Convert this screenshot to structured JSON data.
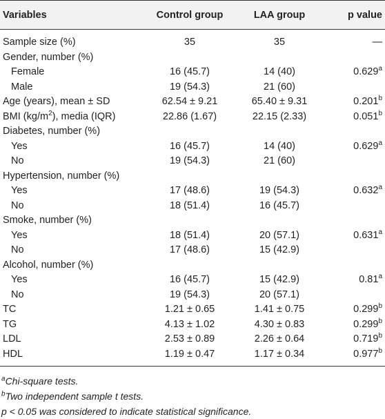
{
  "table": {
    "header": [
      "Variables",
      "Control group",
      "LAA group",
      "p value"
    ],
    "rows": [
      {
        "cells": [
          "Sample size (%)",
          "35",
          "35",
          "—"
        ]
      },
      {
        "cells": [
          "Gender, number (%)"
        ]
      },
      {
        "sub": true,
        "cells": [
          "Female",
          "16 (45.7)",
          "14 (40)",
          {
            "text": "0.629",
            "sup": "a"
          }
        ]
      },
      {
        "sub": true,
        "cells": [
          "Male",
          "19 (54.3)",
          "21 (60)"
        ]
      },
      {
        "cells": [
          "Age (years), mean ± SD",
          "62.54 ± 9.21",
          "65.40 ± 9.31",
          {
            "text": "0.201",
            "sup": "b"
          }
        ]
      },
      {
        "cells": [
          {
            "text": "BMI (kg/m",
            "sup": "2",
            "after": "), media (IQR)"
          },
          "22.86 (1.67)",
          "22.15 (2.33)",
          {
            "text": "0.051",
            "sup": "b"
          }
        ]
      },
      {
        "cells": [
          "Diabetes, number (%)"
        ]
      },
      {
        "sub": true,
        "cells": [
          "Yes",
          "16 (45.7)",
          "14 (40)",
          {
            "text": "0.629",
            "sup": "a"
          }
        ]
      },
      {
        "sub": true,
        "cells": [
          "No",
          "19 (54.3)",
          "21 (60)"
        ]
      },
      {
        "cells": [
          "Hypertension, number (%)"
        ]
      },
      {
        "sub": true,
        "cells": [
          "Yes",
          "17 (48.6)",
          "19 (54.3)",
          {
            "text": "0.632",
            "sup": "a"
          }
        ]
      },
      {
        "sub": true,
        "cells": [
          "No",
          "18 (51.4)",
          "16 (45.7)"
        ]
      },
      {
        "cells": [
          "Smoke, number (%)"
        ]
      },
      {
        "sub": true,
        "cells": [
          "Yes",
          "18 (51.4)",
          "20 (57.1)",
          {
            "text": "0.631",
            "sup": "a"
          }
        ]
      },
      {
        "sub": true,
        "cells": [
          "No",
          "17 (48.6)",
          "15 (42.9)"
        ]
      },
      {
        "cells": [
          "Alcohol, number (%)"
        ]
      },
      {
        "sub": true,
        "cells": [
          "Yes",
          "16 (45.7)",
          "15 (42.9)",
          {
            "text": "0.81",
            "sup": "a"
          }
        ]
      },
      {
        "sub": true,
        "cells": [
          "No",
          "19 (54.3)",
          "20 (57.1)"
        ]
      },
      {
        "cells": [
          "TC",
          "1.21 ± 0.65",
          "1.41 ± 0.75",
          {
            "text": "0.299",
            "sup": "b"
          }
        ]
      },
      {
        "cells": [
          "TG",
          "4.13 ± 1.02",
          "4.30 ± 0.83",
          {
            "text": "0.299",
            "sup": "b"
          }
        ]
      },
      {
        "cells": [
          "LDL",
          "2.53 ± 0.89",
          "2.26 ± 0.64",
          {
            "text": "0.719",
            "sup": "b"
          }
        ]
      },
      {
        "cells": [
          "HDL",
          "1.19 ± 0.47",
          "1.17 ± 0.34",
          {
            "text": "0.977",
            "sup": "b"
          }
        ]
      }
    ],
    "footnotes": [
      {
        "sup": "a",
        "text": "Chi-square tests."
      },
      {
        "sup": "b",
        "text": "Two independent sample t tests."
      },
      {
        "text": "p < 0.05 was considered to indicate statistical significance."
      }
    ]
  }
}
